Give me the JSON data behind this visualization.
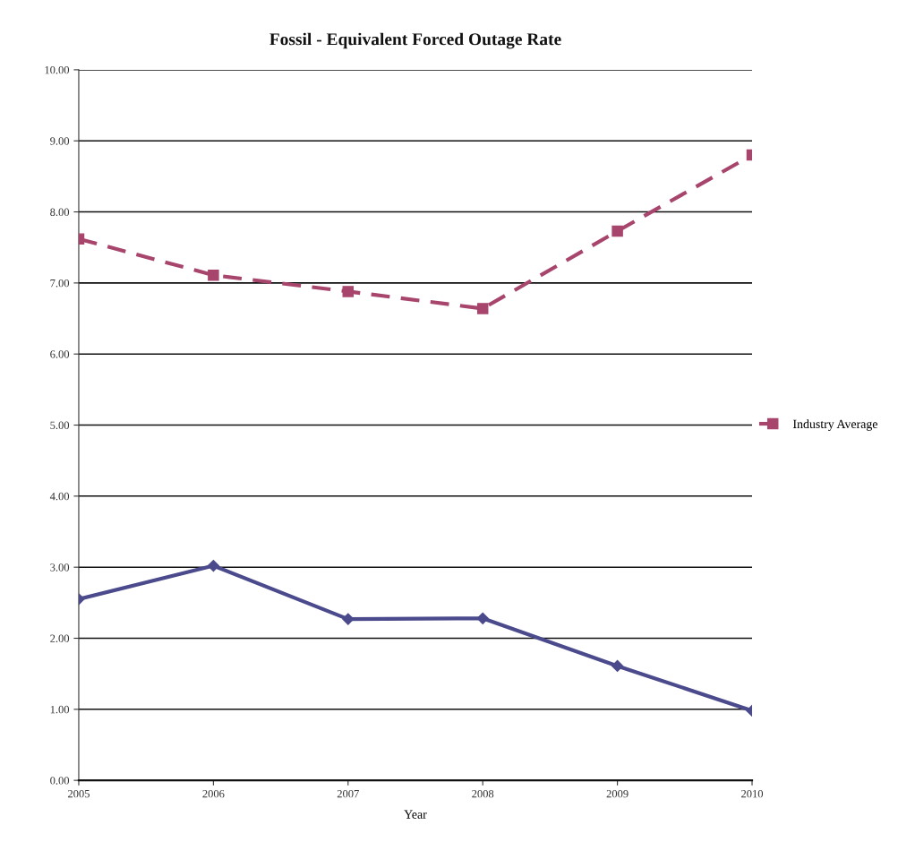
{
  "chart_data": {
    "type": "line",
    "title": "Fossil - Equivalent Forced Outage Rate",
    "xlabel": "Year",
    "categories": [
      "2005",
      "2006",
      "2007",
      "2008",
      "2009",
      "2010"
    ],
    "series": [
      {
        "color": "#4b4a8c",
        "marker": "diamond",
        "line_style": "solid",
        "values": [
          2.55,
          3.02,
          2.27,
          2.28,
          1.61,
          0.98
        ]
      },
      {
        "name": "Industry Average",
        "color": "#a8456c",
        "marker": "square",
        "line_style": "dashed",
        "values": [
          7.62,
          7.11,
          6.88,
          6.64,
          7.73,
          8.8
        ]
      }
    ],
    "ylim": [
      0,
      10
    ],
    "yticks": [
      {
        "value": 0,
        "label": "0.00"
      },
      {
        "value": 1,
        "label": "1.00"
      },
      {
        "value": 2,
        "label": "2.00"
      },
      {
        "value": 3,
        "label": "3.00"
      },
      {
        "value": 4,
        "label": "4.00"
      },
      {
        "value": 5,
        "label": "5.00"
      },
      {
        "value": 6,
        "label": "6.00"
      },
      {
        "value": 7,
        "label": "7.00"
      },
      {
        "value": 8,
        "label": "8.00"
      },
      {
        "value": 9,
        "label": "9.00"
      },
      {
        "value": 10,
        "label": "10.00"
      }
    ],
    "grid": "y",
    "legend": "right"
  }
}
